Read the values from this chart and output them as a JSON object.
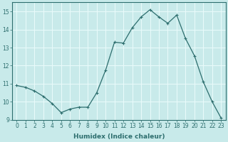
{
  "x": [
    0,
    1,
    2,
    3,
    4,
    5,
    6,
    7,
    8,
    9,
    10,
    11,
    12,
    13,
    14,
    15,
    16,
    17,
    18,
    19,
    20,
    21,
    22,
    23
  ],
  "y": [
    10.9,
    10.8,
    10.6,
    10.3,
    9.9,
    9.4,
    9.6,
    9.7,
    9.7,
    10.5,
    11.75,
    13.3,
    13.25,
    14.1,
    14.7,
    15.1,
    14.7,
    14.35,
    14.8,
    13.5,
    12.55,
    11.1,
    10.0,
    9.1
  ],
  "line_color": "#2d6e6e",
  "marker": "+",
  "marker_size": 3,
  "marker_lw": 0.8,
  "bg_color": "#c8eaea",
  "grid_color": "#e8fafa",
  "xlabel": "Humidex (Indice chaleur)",
  "xlim": [
    -0.5,
    23.5
  ],
  "ylim": [
    9,
    15.5
  ],
  "yticks": [
    9,
    10,
    11,
    12,
    13,
    14,
    15
  ],
  "xticks": [
    0,
    1,
    2,
    3,
    4,
    5,
    6,
    7,
    8,
    9,
    10,
    11,
    12,
    13,
    14,
    15,
    16,
    17,
    18,
    19,
    20,
    21,
    22,
    23
  ],
  "tick_color": "#2d6e6e",
  "label_fontsize": 6.5,
  "tick_fontsize": 5.5,
  "xlabel_fontsize": 6.5,
  "line_width": 0.9
}
